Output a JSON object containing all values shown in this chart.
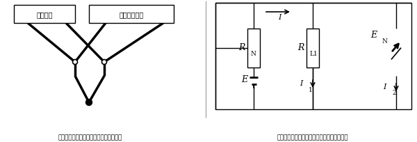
{
  "left_title": "热电偶与动圈仪表、电子电位差计接线图",
  "right_title": "热电偶与动圈仪表、电子电位差计等效电路图",
  "box1_label": "动圈仪表",
  "box2_label": "电子电位差计",
  "line_color": "#000000",
  "bg_color": "#ffffff",
  "lw_thin": 1.0,
  "lw_thick": 2.5,
  "font_path_hints": [
    "SimHei",
    "Microsoft YaHei",
    "WenQuanYi Micro Hei",
    "Noto Sans CJK SC",
    "Arial Unicode MS",
    "DejaVu Sans"
  ]
}
